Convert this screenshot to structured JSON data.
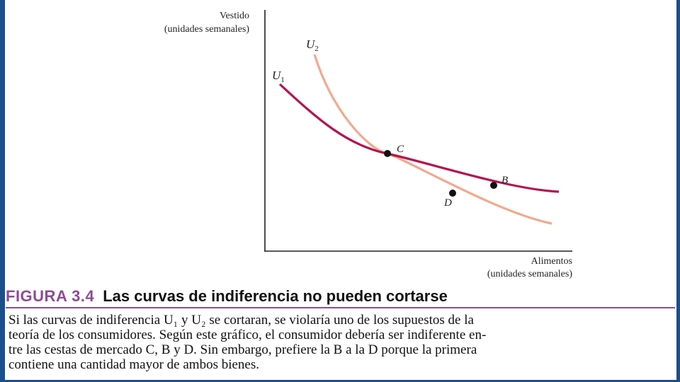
{
  "diagram": {
    "y_axis_label": [
      "Vestido",
      "(unidades semanales)"
    ],
    "x_axis_label": [
      "Alimentos",
      "(unidades semanales)"
    ],
    "curves": [
      {
        "name": "U",
        "subscript": "1",
        "color": "#b5134f"
      },
      {
        "name": "U",
        "subscript": "2",
        "color": "#f2a98c"
      }
    ],
    "points": [
      {
        "label": "C"
      },
      {
        "label": "B"
      },
      {
        "label": "D"
      }
    ]
  },
  "caption": {
    "figure_number": "FIGURA 3.4",
    "title": "Las curvas de indiferencia no pueden cortarse",
    "lines": [
      "Si las curvas de indiferencia U₁ y U₂ se cortaran, se violaría uno de los supuestos de la",
      "teoría de los consumidores. Según este gráfico, el consumidor debería ser indiferente en-",
      "tre las cestas de mercado C, B y D. Sin embargo, prefiere la B a la D porque la primera",
      "contiene una cantidad mayor de ambos bienes."
    ]
  },
  "colors": {
    "frame": "#1a4f8a",
    "accent": "#8c4c94"
  }
}
